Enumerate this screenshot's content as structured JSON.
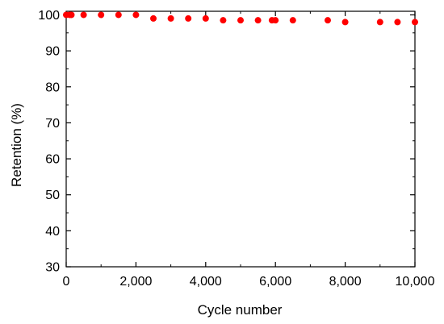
{
  "chart_data": {
    "type": "scatter",
    "title": "",
    "xlabel": "Cycle number",
    "ylabel": "Retention (%)",
    "xlim": [
      0,
      10000
    ],
    "ylim": [
      30,
      101
    ],
    "x_ticks": [
      0,
      2000,
      4000,
      6000,
      8000,
      10000
    ],
    "x_tick_labels": [
      "0",
      "2,000",
      "4,000",
      "6,000",
      "8,000",
      "10,000"
    ],
    "y_ticks": [
      30,
      40,
      50,
      60,
      70,
      80,
      90,
      100
    ],
    "y_tick_labels": [
      "30",
      "40",
      "50",
      "60",
      "70",
      "80",
      "90",
      "100"
    ],
    "grid": false,
    "marker_color": "#ff0000",
    "series": [
      {
        "x": [
          0,
          100,
          150,
          500,
          1000,
          1500,
          2000,
          2500,
          3000,
          3500,
          4000,
          4500,
          5000,
          5500,
          5900,
          6000,
          6500,
          7500,
          8000,
          9000,
          9500,
          10000
        ],
        "y": [
          100,
          100,
          100,
          100,
          100,
          100,
          100,
          99,
          99,
          99,
          99,
          98.5,
          98.5,
          98.5,
          98.5,
          98.5,
          98.5,
          98.5,
          98,
          98,
          98,
          98
        ]
      }
    ]
  }
}
